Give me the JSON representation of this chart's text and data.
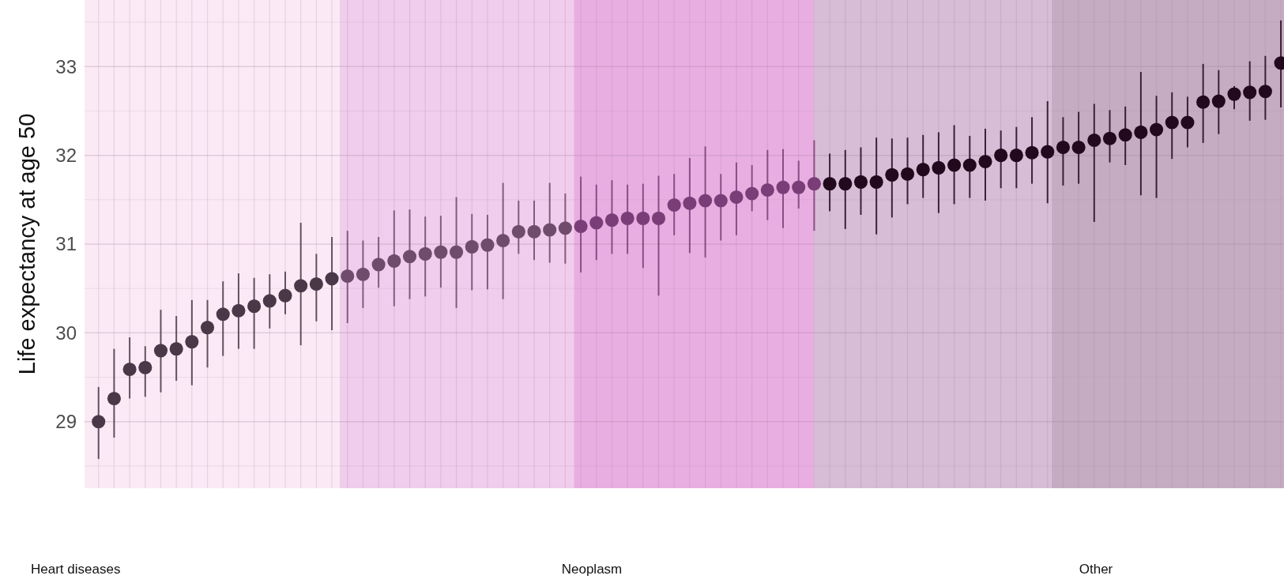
{
  "chart_data": {
    "type": "scatter",
    "ylabel": "Life expectancy at age 50",
    "categories": [
      null,
      null,
      null,
      null,
      null,
      null,
      null,
      null,
      null,
      null,
      null,
      null,
      null,
      null,
      null,
      null,
      null,
      null,
      null,
      null,
      null,
      null,
      null,
      null,
      null,
      null,
      null,
      null,
      null,
      null,
      null,
      null,
      null,
      null,
      null,
      null,
      null,
      null,
      null,
      null,
      null,
      null,
      null,
      null,
      null,
      null,
      null,
      null,
      null,
      null,
      null,
      null,
      null,
      null,
      null,
      null,
      null,
      null,
      null,
      null,
      null,
      null,
      null,
      null,
      null,
      null,
      null,
      null,
      null,
      null,
      null,
      null,
      null,
      null,
      null,
      null,
      null
    ],
    "values": [
      29.0,
      29.26,
      29.59,
      29.61,
      29.8,
      29.82,
      29.9,
      30.06,
      30.21,
      30.25,
      30.3,
      30.36,
      30.42,
      30.53,
      30.55,
      30.61,
      30.64,
      30.66,
      30.77,
      30.81,
      30.86,
      30.89,
      30.91,
      30.91,
      30.97,
      30.99,
      31.04,
      31.14,
      31.14,
      31.16,
      31.18,
      31.2,
      31.24,
      31.27,
      31.29,
      31.29,
      31.29,
      31.44,
      31.46,
      31.49,
      31.49,
      31.53,
      31.57,
      31.61,
      31.64,
      31.64,
      31.68,
      31.68,
      31.68,
      31.7,
      31.7,
      31.78,
      31.79,
      31.84,
      31.86,
      31.89,
      31.89,
      31.93,
      32.0,
      32.0,
      32.03,
      32.04,
      32.09,
      32.09,
      32.17,
      32.19,
      32.23,
      32.26,
      32.29,
      32.37,
      32.37,
      32.6,
      32.61,
      32.69,
      32.71,
      32.72,
      33.04
    ],
    "errors": [
      [
        28.58,
        29.39
      ],
      [
        28.82,
        29.82
      ],
      [
        29.26,
        29.95
      ],
      [
        29.28,
        29.85
      ],
      [
        29.33,
        30.26
      ],
      [
        29.46,
        30.19
      ],
      [
        29.41,
        30.37
      ],
      [
        29.61,
        30.37
      ],
      [
        29.74,
        30.58
      ],
      [
        29.82,
        30.67
      ],
      [
        29.82,
        30.62
      ],
      [
        30.05,
        30.66
      ],
      [
        30.21,
        30.69
      ],
      [
        29.86,
        31.24
      ],
      [
        30.13,
        30.89
      ],
      [
        30.03,
        31.08
      ],
      [
        30.11,
        31.15
      ],
      [
        30.28,
        31.04
      ],
      [
        30.51,
        31.08
      ],
      [
        30.3,
        31.38
      ],
      [
        30.38,
        31.39
      ],
      [
        30.41,
        31.31
      ],
      [
        30.51,
        31.32
      ],
      [
        30.28,
        31.53
      ],
      [
        30.48,
        31.34
      ],
      [
        30.49,
        31.33
      ],
      [
        30.38,
        31.69
      ],
      [
        30.89,
        31.49
      ],
      [
        30.82,
        31.49
      ],
      [
        30.79,
        31.69
      ],
      [
        30.78,
        31.57
      ],
      [
        30.68,
        31.76
      ],
      [
        30.82,
        31.67
      ],
      [
        30.89,
        31.72
      ],
      [
        30.89,
        31.67
      ],
      [
        30.73,
        31.68
      ],
      [
        30.42,
        31.77
      ],
      [
        31.1,
        31.79
      ],
      [
        30.9,
        31.97
      ],
      [
        30.85,
        32.1
      ],
      [
        31.04,
        31.79
      ],
      [
        31.1,
        31.92
      ],
      [
        31.37,
        31.89
      ],
      [
        31.27,
        32.06
      ],
      [
        31.18,
        32.07
      ],
      [
        31.4,
        31.94
      ],
      [
        31.15,
        32.17
      ],
      [
        31.37,
        32.02
      ],
      [
        31.17,
        32.06
      ],
      [
        31.33,
        32.09
      ],
      [
        31.11,
        32.2
      ],
      [
        31.3,
        32.19
      ],
      [
        31.45,
        32.2
      ],
      [
        31.52,
        32.23
      ],
      [
        31.35,
        32.26
      ],
      [
        31.45,
        32.34
      ],
      [
        31.52,
        32.22
      ],
      [
        31.49,
        32.3
      ],
      [
        31.63,
        32.28
      ],
      [
        31.63,
        32.32
      ],
      [
        31.68,
        32.43
      ],
      [
        31.46,
        32.61
      ],
      [
        31.66,
        32.43
      ],
      [
        31.68,
        32.49
      ],
      [
        31.25,
        32.58
      ],
      [
        31.92,
        32.51
      ],
      [
        31.89,
        32.55
      ],
      [
        31.55,
        32.94
      ],
      [
        31.52,
        32.67
      ],
      [
        31.96,
        32.71
      ],
      [
        32.09,
        32.66
      ],
      [
        32.14,
        33.03
      ],
      [
        32.24,
        32.96
      ],
      [
        32.52,
        32.78
      ],
      [
        32.39,
        33.06
      ],
      [
        32.4,
        33.12
      ],
      [
        32.54,
        33.52
      ]
    ],
    "colors": [
      "#4a3848",
      "#4a3848",
      "#4a3848",
      "#4a3848",
      "#4a3848",
      "#4a3848",
      "#4a3848",
      "#4a3848",
      "#4a3848",
      "#4a3848",
      "#4a3848",
      "#4a3848",
      "#4a3848",
      "#4a3848",
      "#4a3848",
      "#4a3848",
      "#6f4b6c",
      "#6f4b6c",
      "#6f4b6c",
      "#6f4b6c",
      "#6f4b6c",
      "#6f4b6c",
      "#6f4b6c",
      "#6f4b6c",
      "#6f4b6c",
      "#6f4b6c",
      "#6f4b6c",
      "#6f4b6c",
      "#6f4b6c",
      "#6f4b6c",
      "#6f4b6c",
      "#7b3d78",
      "#7b3d78",
      "#7b3d78",
      "#7b3d78",
      "#7b3d78",
      "#7b3d78",
      "#7b3d78",
      "#7b3d78",
      "#7b3d78",
      "#7b3d78",
      "#7b3d78",
      "#7b3d78",
      "#7b3d78",
      "#7b3d78",
      "#7b3d78",
      "#7b3d78",
      "#22091e",
      "#22091e",
      "#22091e",
      "#22091e",
      "#22091e",
      "#22091e",
      "#22091e",
      "#22091e",
      "#22091e",
      "#22091e",
      "#22091e",
      "#22091e",
      "#22091e",
      "#22091e",
      "#22091e",
      "#22091e",
      "#22091e",
      "#22091e",
      "#22091e",
      "#22091e",
      "#22091e",
      "#22091e",
      "#22091e",
      "#22091e",
      "#22091e",
      "#22091e",
      "#22091e",
      "#22091e",
      "#22091e",
      "#22091e"
    ],
    "ylim": [
      28.25,
      33.75
    ],
    "yticks": [
      {
        "value": 28.5,
        "label": null
      },
      29,
      {
        "value": 29.5,
        "label": null
      },
      30,
      {
        "value": 30.5,
        "label": null
      },
      31,
      {
        "value": 31.5,
        "label": null
      },
      32,
      {
        "value": 32.5,
        "label": null
      },
      33,
      {
        "value": 33.5,
        "label": null
      }
    ],
    "grid": true,
    "marker": "circle",
    "annotations": [
      "Heart diseases",
      "Neoplasm",
      "Other"
    ]
  }
}
